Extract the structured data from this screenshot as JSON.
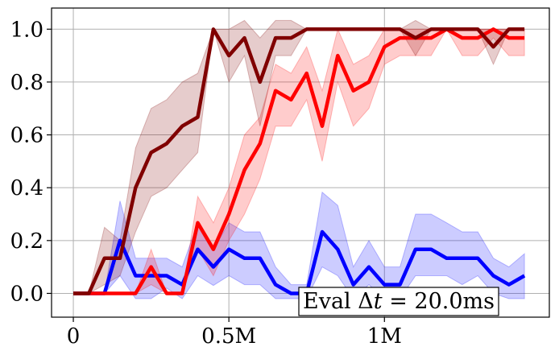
{
  "chart_data": {
    "type": "line",
    "x_tick_values": [
      0,
      500000,
      1000000
    ],
    "x_tick_labels": [
      "0",
      "0.5M",
      "1M"
    ],
    "y_tick_values": [
      0.0,
      0.2,
      0.4,
      0.6,
      0.8,
      1.0
    ],
    "y_tick_labels": [
      "0.0",
      "0.2",
      "0.4",
      "0.6",
      "0.8",
      "1.0"
    ],
    "xlim": [
      -70000,
      1530000
    ],
    "ylim": [
      -0.09,
      1.08
    ],
    "grid": true,
    "annotation": {
      "prefix": "Eval ",
      "symbol": "Δ",
      "variable": "t",
      "suffix": " = 20.0ms"
    },
    "x": [
      0,
      50000,
      100000,
      150000,
      200000,
      250000,
      300000,
      350000,
      400000,
      450000,
      500000,
      550000,
      600000,
      650000,
      700000,
      750000,
      800000,
      850000,
      900000,
      950000,
      1000000,
      1050000,
      1100000,
      1150000,
      1200000,
      1250000,
      1300000,
      1350000,
      1400000,
      1450000
    ],
    "series": [
      {
        "color": "#0000ff",
        "values": [
          0,
          0,
          0,
          0.2,
          0.067,
          0.067,
          0.067,
          0.033,
          0.167,
          0.1,
          0.167,
          0.133,
          0.133,
          0.033,
          0,
          0,
          0.233,
          0.167,
          0.033,
          0.1,
          0.033,
          0.033,
          0.167,
          0.167,
          0.133,
          0.133,
          0.133,
          0.067,
          0.033,
          0.067
        ],
        "lower": [
          0,
          0,
          0,
          0.067,
          -0.02,
          -0.02,
          0.02,
          -0.02,
          0.067,
          0.03,
          0.067,
          0.033,
          0.033,
          -0.02,
          -0.02,
          -0.02,
          0.1,
          0.067,
          -0.02,
          0.033,
          -0.02,
          -0.02,
          0.067,
          0.067,
          0.067,
          0.033,
          0.067,
          0,
          -0.02,
          -0.02
        ],
        "upper": [
          0,
          0,
          0,
          0.35,
          0.133,
          0.133,
          0.133,
          0.1,
          0.267,
          0.167,
          0.267,
          0.233,
          0.233,
          0.1,
          0.033,
          0.033,
          0.383,
          0.333,
          0.1,
          0.2,
          0.1,
          0.1,
          0.3,
          0.3,
          0.267,
          0.233,
          0.233,
          0.133,
          0.1,
          0.15
        ]
      },
      {
        "color": "#ff0000",
        "values": [
          0,
          0,
          0,
          0,
          0,
          0.1,
          0,
          0,
          0.267,
          0.167,
          0.3,
          0.467,
          0.567,
          0.767,
          0.733,
          0.833,
          0.633,
          0.9,
          0.767,
          0.8,
          0.933,
          0.967,
          0.967,
          0.967,
          1.0,
          0.967,
          0.967,
          1.0,
          0.967,
          0.967
        ],
        "lower": [
          0,
          0,
          0,
          0,
          0,
          0.033,
          0,
          0,
          0.167,
          0.067,
          0.2,
          0.3,
          0.433,
          0.633,
          0.633,
          0.733,
          0.5,
          0.8,
          0.633,
          0.7,
          0.867,
          0.9,
          0.9,
          0.9,
          1.0,
          0.9,
          0.9,
          0.967,
          0.9,
          0.9
        ],
        "upper": [
          0,
          0,
          0,
          0,
          0,
          0.167,
          0,
          0,
          0.367,
          0.267,
          0.4,
          0.6,
          0.667,
          0.867,
          0.833,
          0.933,
          0.767,
          1.0,
          0.867,
          0.9,
          1.0,
          1.0,
          1.0,
          1.0,
          1.0,
          1.0,
          1.0,
          1.0,
          1.0,
          1.0
        ]
      },
      {
        "color": "#800000",
        "values": [
          0,
          0,
          0.133,
          0.133,
          0.4,
          0.533,
          0.567,
          0.633,
          0.667,
          1.0,
          0.9,
          0.967,
          0.8,
          0.967,
          0.967,
          1.0,
          1.0,
          1.0,
          1.0,
          1.0,
          1.0,
          1.0,
          0.967,
          1.0,
          1.0,
          1.0,
          1.0,
          0.933,
          1.0,
          1.0
        ],
        "lower": [
          0,
          0,
          0.033,
          0.067,
          0.233,
          0.367,
          0.4,
          0.467,
          0.533,
          1.0,
          0.8,
          0.9,
          0.633,
          0.9,
          0.9,
          1.0,
          1.0,
          1.0,
          1.0,
          1.0,
          1.0,
          1.0,
          0.9,
          1.0,
          1.0,
          1.0,
          1.0,
          0.867,
          1.0,
          1.0
        ],
        "upper": [
          0,
          0,
          0.25,
          0.2,
          0.55,
          0.7,
          0.733,
          0.8,
          0.833,
          1.0,
          1.0,
          1.033,
          0.967,
          1.033,
          1.033,
          1.0,
          1.0,
          1.0,
          1.0,
          1.0,
          1.0,
          1.0,
          1.033,
          1.0,
          1.0,
          1.0,
          1.0,
          1.0,
          1.0,
          1.0
        ]
      }
    ]
  }
}
